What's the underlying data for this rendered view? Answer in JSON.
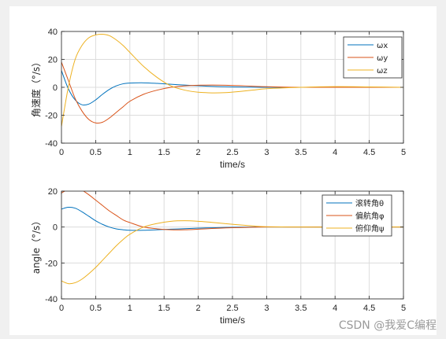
{
  "watermark": "CSDN @我爱C编程",
  "chart_data": [
    {
      "type": "line",
      "xlabel": "time/s",
      "ylabel": "角速度（°/s）",
      "xlim": [
        0,
        5
      ],
      "ylim": [
        -40,
        40
      ],
      "xticks": [
        0,
        0.5,
        1,
        1.5,
        2,
        2.5,
        3,
        3.5,
        4,
        4.5,
        5
      ],
      "yticks": [
        -40,
        -20,
        0,
        20,
        40
      ],
      "grid": true,
      "legend": "top-right",
      "x": [
        0,
        0.1,
        0.2,
        0.3,
        0.4,
        0.5,
        0.6,
        0.7,
        0.8,
        0.9,
        1.0,
        1.2,
        1.4,
        1.6,
        1.8,
        2.0,
        2.2,
        2.4,
        2.6,
        2.8,
        3.0,
        3.5,
        4.0,
        4.5,
        5.0
      ],
      "series": [
        {
          "name": "ωx",
          "color": "#0072BD",
          "values": [
            12,
            -1,
            -9,
            -12.5,
            -12,
            -9,
            -5,
            -1.5,
            1,
            2.5,
            3,
            3.2,
            2.8,
            2.2,
            1.6,
            1.1,
            0.7,
            0.4,
            0.2,
            0.1,
            0,
            0,
            0,
            0,
            0
          ]
        },
        {
          "name": "ωy",
          "color": "#D95319",
          "values": [
            18,
            5,
            -8,
            -17,
            -23,
            -25.5,
            -25,
            -22,
            -18,
            -14,
            -10,
            -5,
            -2,
            0,
            1,
            1.5,
            1.6,
            1.5,
            1.2,
            0.8,
            0.4,
            0,
            0,
            0,
            0
          ]
        },
        {
          "name": "ωz",
          "color": "#EDB120",
          "values": [
            -28,
            0,
            20,
            30,
            35.5,
            37.5,
            38,
            37,
            34,
            30,
            25,
            15,
            7,
            1,
            -2,
            -3.5,
            -4,
            -3.8,
            -3,
            -2,
            -1,
            0,
            0.5,
            0.3,
            0
          ]
        }
      ]
    },
    {
      "type": "line",
      "xlabel": "time/s",
      "ylabel": "angle（°/s）",
      "xlim": [
        0,
        5
      ],
      "ylim": [
        -40,
        20
      ],
      "xticks": [
        0,
        0.5,
        1,
        1.5,
        2,
        2.5,
        3,
        3.5,
        4,
        4.5,
        5
      ],
      "yticks": [
        -40,
        -20,
        0,
        20
      ],
      "grid": true,
      "legend": "top-right",
      "x": [
        0,
        0.1,
        0.2,
        0.3,
        0.4,
        0.5,
        0.6,
        0.7,
        0.8,
        0.9,
        1.0,
        1.2,
        1.4,
        1.6,
        1.8,
        2.0,
        2.2,
        2.4,
        2.6,
        2.8,
        3.0,
        3.5,
        4.0,
        4.5,
        5.0
      ],
      "series": [
        {
          "name": "滚转角θ",
          "color": "#0072BD",
          "values": [
            10,
            11,
            10.5,
            8.5,
            6,
            3.5,
            1.5,
            0,
            -1,
            -1.5,
            -1.8,
            -1.8,
            -1.5,
            -1.2,
            -0.9,
            -0.6,
            -0.4,
            -0.2,
            -0.1,
            0,
            0,
            0,
            0,
            0,
            0
          ]
        },
        {
          "name": "偏航角φ",
          "color": "#D95319",
          "values": [
            19,
            21,
            22,
            20.5,
            18,
            15,
            12,
            9,
            6.5,
            4,
            2.5,
            0,
            -1,
            -1.5,
            -1.5,
            -1.2,
            -0.8,
            -0.5,
            -0.3,
            -0.1,
            0,
            0,
            0,
            0,
            0
          ]
        },
        {
          "name": "俯仰角ψ",
          "color": "#EDB120",
          "values": [
            -30,
            -31.5,
            -31,
            -29,
            -26,
            -22.5,
            -18.5,
            -14.5,
            -10.5,
            -7,
            -4,
            0,
            2,
            3.2,
            3.5,
            3.2,
            2.6,
            1.9,
            1.2,
            0.6,
            0.2,
            0,
            0,
            0,
            0
          ]
        }
      ]
    }
  ]
}
